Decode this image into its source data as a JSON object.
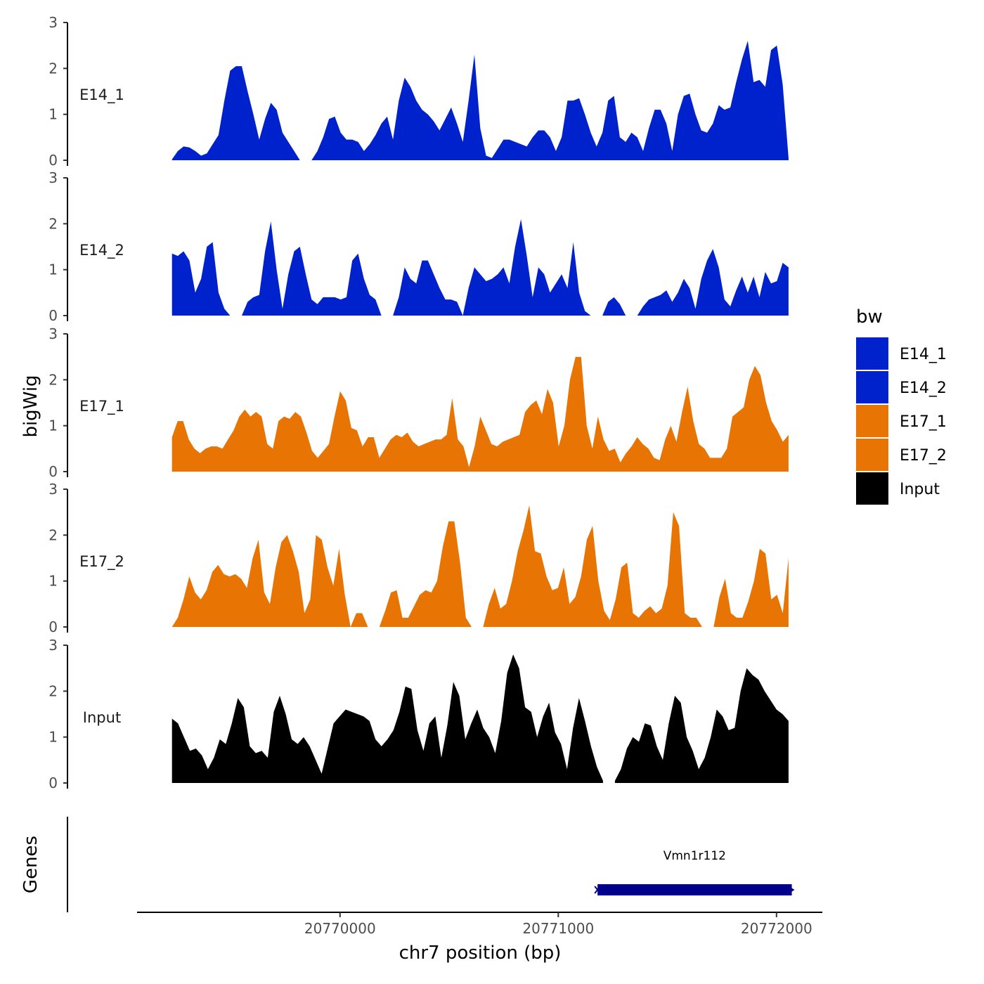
{
  "chart_data": {
    "type": "area",
    "ylabel": "bigWig",
    "genes_label": "Genes",
    "xlabel": "chr7 position (bp)",
    "xlim": [
      20769070,
      20772210
    ],
    "data_range": [
      20769230,
      20772055
    ],
    "ylim": [
      0,
      3
    ],
    "y_ticks": [
      "0",
      "1",
      "2",
      "3"
    ],
    "x_ticks": [
      {
        "value": 20770000,
        "label": "20770000"
      },
      {
        "value": 20771000,
        "label": "20771000"
      },
      {
        "value": 20772000,
        "label": "20772000"
      }
    ],
    "legend": {
      "title": "bw",
      "entries": [
        {
          "label": "E14_1",
          "color": "#0022CC"
        },
        {
          "label": "E14_2",
          "color": "#0022CC"
        },
        {
          "label": "E17_1",
          "color": "#E87503"
        },
        {
          "label": "E17_2",
          "color": "#E87503"
        },
        {
          "label": "Input",
          "color": "#000000"
        }
      ]
    },
    "series": [
      {
        "name": "E14_1",
        "color": "#0022CC",
        "values": [
          0.02,
          0.2,
          0.3,
          0.28,
          0.2,
          0.1,
          0.15,
          0.35,
          0.55,
          1.3,
          1.95,
          2.05,
          2.05,
          1.5,
          1.0,
          0.45,
          0.9,
          1.25,
          1.1,
          0.6,
          0.4,
          0.2,
          0.0,
          null,
          0.0,
          0.2,
          0.5,
          0.9,
          0.95,
          0.6,
          0.45,
          0.45,
          0.4,
          0.2,
          0.35,
          0.55,
          0.8,
          0.95,
          0.45,
          1.3,
          1.8,
          1.6,
          1.3,
          1.1,
          1.0,
          0.85,
          0.65,
          0.9,
          1.15,
          0.8,
          0.4,
          1.3,
          2.3,
          0.7,
          0.1,
          0.05,
          0.25,
          0.45,
          0.45,
          0.4,
          0.35,
          0.3,
          0.5,
          0.65,
          0.65,
          0.5,
          0.2,
          0.5,
          1.3,
          1.3,
          1.35,
          1.0,
          0.6,
          0.3,
          0.6,
          1.3,
          1.4,
          0.5,
          0.4,
          0.6,
          0.5,
          0.2,
          0.7,
          1.1,
          1.1,
          0.8,
          0.2,
          1.0,
          1.4,
          1.45,
          1.0,
          0.65,
          0.6,
          0.8,
          1.2,
          1.1,
          1.15,
          1.7,
          2.2,
          2.6,
          1.7,
          1.75,
          1.6,
          2.4,
          2.5,
          1.65,
          0.05
        ]
      },
      {
        "name": "E14_2",
        "color": "#0022CC",
        "values": [
          1.35,
          1.3,
          1.4,
          1.2,
          0.5,
          0.8,
          1.5,
          1.6,
          0.5,
          0.15,
          0.0,
          null,
          0.0,
          0.3,
          0.4,
          0.45,
          1.4,
          2.05,
          1.0,
          0.15,
          0.9,
          1.4,
          1.5,
          0.9,
          0.35,
          0.25,
          0.4,
          0.4,
          0.4,
          0.35,
          0.4,
          1.2,
          1.35,
          0.8,
          0.45,
          0.35,
          0.0,
          null,
          0.0,
          0.4,
          1.05,
          0.8,
          0.7,
          1.2,
          1.2,
          0.9,
          0.6,
          0.35,
          0.35,
          0.3,
          0.0,
          0.6,
          1.05,
          0.9,
          0.75,
          0.8,
          0.9,
          1.05,
          0.7,
          1.5,
          2.1,
          1.3,
          0.4,
          1.05,
          0.9,
          0.5,
          0.7,
          0.9,
          0.6,
          1.6,
          0.5,
          0.1,
          0.0,
          null,
          0.0,
          0.3,
          0.4,
          0.25,
          0.0,
          null,
          0.0,
          0.2,
          0.35,
          0.4,
          0.45,
          0.55,
          0.3,
          0.5,
          0.8,
          0.6,
          0.15,
          0.8,
          1.2,
          1.45,
          1.05,
          0.35,
          0.2,
          0.55,
          0.85,
          0.5,
          0.85,
          0.4,
          0.95,
          0.7,
          0.75,
          1.15,
          1.05
        ]
      },
      {
        "name": "E17_1",
        "color": "#E87503",
        "values": [
          0.75,
          1.1,
          1.1,
          0.7,
          0.5,
          0.4,
          0.5,
          0.55,
          0.55,
          0.5,
          0.7,
          0.9,
          1.2,
          1.35,
          1.2,
          1.3,
          1.2,
          0.6,
          0.5,
          1.1,
          1.2,
          1.15,
          1.3,
          1.2,
          0.85,
          0.45,
          0.3,
          0.45,
          0.6,
          1.2,
          1.75,
          1.55,
          0.95,
          0.9,
          0.55,
          0.75,
          0.75,
          0.3,
          0.5,
          0.7,
          0.8,
          0.75,
          0.85,
          0.65,
          0.55,
          0.6,
          0.65,
          0.7,
          0.7,
          0.8,
          1.6,
          0.7,
          0.55,
          0.1,
          0.55,
          1.2,
          0.9,
          0.6,
          0.55,
          0.65,
          0.7,
          0.75,
          0.8,
          1.3,
          1.45,
          1.55,
          1.25,
          1.8,
          1.5,
          0.55,
          1.0,
          2.0,
          2.5,
          2.5,
          1.0,
          0.5,
          1.2,
          0.7,
          0.45,
          0.5,
          0.2,
          0.4,
          0.55,
          0.75,
          0.6,
          0.5,
          0.3,
          0.25,
          0.7,
          1.0,
          0.65,
          1.3,
          1.85,
          1.1,
          0.6,
          0.5,
          0.3,
          0.3,
          0.3,
          0.5,
          1.2,
          1.3,
          1.4,
          2.0,
          2.3,
          2.1,
          1.5,
          1.1,
          0.9,
          0.65,
          0.8
        ]
      },
      {
        "name": "E17_2",
        "color": "#E87503",
        "values": [
          0.0,
          0.2,
          0.6,
          1.1,
          0.75,
          0.6,
          0.8,
          1.2,
          1.35,
          1.15,
          1.1,
          1.15,
          1.05,
          0.85,
          1.5,
          1.9,
          0.75,
          0.5,
          1.3,
          1.85,
          2.0,
          1.65,
          1.2,
          0.3,
          0.6,
          2.0,
          1.9,
          1.3,
          0.9,
          1.7,
          0.7,
          0.0,
          0.3,
          0.3,
          0.0,
          null,
          0.0,
          0.35,
          0.75,
          0.8,
          0.2,
          0.2,
          0.45,
          0.7,
          0.8,
          0.75,
          1.0,
          1.75,
          2.3,
          2.3,
          1.4,
          0.2,
          0.0,
          null,
          0.0,
          0.5,
          0.85,
          0.4,
          0.5,
          1.0,
          1.65,
          2.1,
          2.65,
          1.65,
          1.6,
          1.1,
          0.8,
          0.85,
          1.3,
          0.5,
          0.65,
          1.1,
          1.9,
          2.2,
          1.0,
          0.35,
          0.15,
          0.6,
          1.3,
          1.4,
          0.3,
          0.2,
          0.35,
          0.45,
          0.3,
          0.4,
          0.9,
          2.5,
          2.2,
          0.3,
          0.2,
          0.2,
          0.0,
          null,
          0.0,
          0.65,
          1.05,
          0.3,
          0.2,
          0.2,
          0.55,
          1.0,
          1.7,
          1.6,
          0.6,
          0.7,
          0.3,
          1.5
        ]
      },
      {
        "name": "Input",
        "color": "#000000",
        "values": [
          1.4,
          1.3,
          1.0,
          0.7,
          0.75,
          0.6,
          0.3,
          0.55,
          0.95,
          0.85,
          1.3,
          1.85,
          1.65,
          0.8,
          0.65,
          0.7,
          0.55,
          1.55,
          1.9,
          1.5,
          0.95,
          0.85,
          1.0,
          0.8,
          0.5,
          0.2,
          0.75,
          1.3,
          1.45,
          1.6,
          1.55,
          1.5,
          1.45,
          1.35,
          0.95,
          0.8,
          0.95,
          1.15,
          1.55,
          2.1,
          2.05,
          1.15,
          0.7,
          1.3,
          1.45,
          0.55,
          1.25,
          2.2,
          1.9,
          0.95,
          1.3,
          1.6,
          1.2,
          1.0,
          0.65,
          1.35,
          2.4,
          2.8,
          2.5,
          1.65,
          1.55,
          1.0,
          1.45,
          1.75,
          1.1,
          0.85,
          0.3,
          1.2,
          1.85,
          1.35,
          0.8,
          0.35,
          0.05,
          null,
          0.05,
          0.3,
          0.75,
          1.0,
          0.9,
          1.3,
          1.25,
          0.8,
          0.5,
          1.3,
          1.9,
          1.75,
          1.0,
          0.7,
          0.3,
          0.55,
          1.0,
          1.6,
          1.45,
          1.15,
          1.2,
          2.0,
          2.5,
          2.35,
          2.25,
          2.0,
          1.8,
          1.6,
          1.5,
          1.35
        ]
      }
    ],
    "genes": [
      {
        "name": "Vmn1r112",
        "start": 20771180,
        "end": 20772070,
        "strand": "+",
        "color": "#00008B"
      }
    ]
  }
}
